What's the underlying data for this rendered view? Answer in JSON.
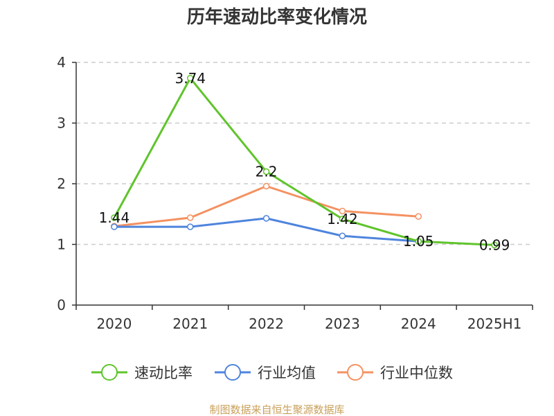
{
  "chart_data": {
    "type": "line",
    "title": "历年速动比率变化情况",
    "categories": [
      "2020",
      "2021",
      "2022",
      "2023",
      "2024",
      "2025H1"
    ],
    "ylim": [
      0,
      4
    ],
    "yticks": [
      "0",
      "1",
      "2",
      "3",
      "4"
    ],
    "grid": true,
    "legend_position": "bottom",
    "series": [
      {
        "name": "速动比率",
        "color": "#5fc42b",
        "values": [
          1.44,
          3.74,
          2.2,
          1.42,
          1.05,
          0.99
        ],
        "labels": [
          "1.44",
          "3.74",
          "2.2",
          "1.42",
          "1.05",
          "0.99"
        ]
      },
      {
        "name": "行业均值",
        "color": "#4e84dd",
        "values": [
          1.29,
          1.29,
          1.43,
          1.14,
          1.05,
          null
        ]
      },
      {
        "name": "行业中位数",
        "color": "#f49161",
        "values": [
          1.3,
          1.44,
          1.96,
          1.55,
          1.46,
          null
        ]
      }
    ],
    "source": "制图数据来自恒生聚源数据库"
  }
}
